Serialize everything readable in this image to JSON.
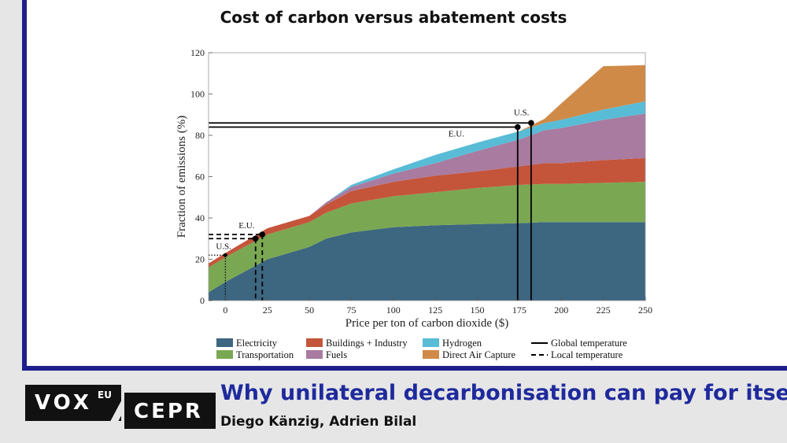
{
  "footer": {
    "logo_vox": "VOX",
    "logo_vox_sup": "EU",
    "logo_cepr": "CEPR",
    "headline": "Why unilateral decarbonisation can pay for itself",
    "authors": "Diego Känzig, Adrien Bilal"
  },
  "chart_data": {
    "type": "area",
    "title": "Cost of carbon versus abatement costs",
    "xlabel": "Price per ton of carbon dioxide ($)",
    "ylabel": "Fraction of emissions (%)",
    "xlim": [
      -10,
      250
    ],
    "ylim": [
      0,
      120
    ],
    "x_ticks": [
      0,
      25,
      50,
      75,
      100,
      125,
      150,
      175,
      200,
      225,
      250
    ],
    "y_ticks": [
      0,
      20,
      40,
      60,
      80,
      100,
      120
    ],
    "grid": false,
    "legend_position": "bottom",
    "stacked": true,
    "x": [
      -10,
      0,
      25,
      50,
      60,
      75,
      100,
      125,
      150,
      175,
      190,
      200,
      225,
      250
    ],
    "series": [
      {
        "name": "Electricity",
        "color": "#3d6680",
        "values": [
          4,
          9,
          20,
          26,
          30,
          33,
          35.5,
          36.5,
          37,
          37.5,
          38,
          38,
          38,
          38
        ]
      },
      {
        "name": "Transportation",
        "color": "#7aa852",
        "values": [
          12,
          12,
          12,
          12,
          12.5,
          14,
          15,
          16,
          17.5,
          18.5,
          18.5,
          18.5,
          19,
          19.5
        ]
      },
      {
        "name": "Buildings + Industry",
        "color": "#c4553a",
        "values": [
          2,
          2,
          3,
          3,
          4,
          6,
          7,
          8,
          8,
          9,
          10,
          10,
          11,
          11.5
        ]
      },
      {
        "name": "Fuels",
        "color": "#a97ba0",
        "values": [
          0,
          0,
          0,
          0,
          1,
          2,
          4,
          6,
          10,
          13,
          16,
          17,
          19.5,
          21.5
        ]
      },
      {
        "name": "Hydrogen",
        "color": "#58bcd6",
        "values": [
          0,
          0,
          0,
          0,
          0,
          1,
          2,
          4,
          4,
          4,
          3.5,
          4,
          5,
          6
        ]
      },
      {
        "name": "Direct Air Capture",
        "color": "#d08a48",
        "values": [
          0,
          0,
          0,
          0,
          0,
          0,
          0,
          0,
          0,
          0,
          2,
          8,
          21,
          17.5
        ]
      }
    ],
    "thresholds": [
      {
        "name": "Global temperature",
        "style": "solid",
        "region": "U.S.",
        "x": 182,
        "y": 86
      },
      {
        "name": "Global temperature",
        "style": "solid",
        "region": "E.U.",
        "x": 174,
        "y": 84
      },
      {
        "name": "Local temperature",
        "style": "dashed",
        "region": "E.U.",
        "x": 22,
        "y": 32
      },
      {
        "name": "Local temperature",
        "style": "dashed",
        "region": "E.U.",
        "x": 18,
        "y": 30
      },
      {
        "name": "Local temperature",
        "style": "dotted",
        "region": "U.S.",
        "x": 0,
        "y": 22
      }
    ],
    "annotations": [
      "U.S.",
      "E.U.",
      "E.U.",
      "U.S."
    ],
    "legend": [
      {
        "label": "Electricity",
        "kind": "swatch",
        "color": "#3d6680"
      },
      {
        "label": "Buildings + Industry",
        "kind": "swatch",
        "color": "#c4553a"
      },
      {
        "label": "Hydrogen",
        "kind": "swatch",
        "color": "#58bcd6"
      },
      {
        "label": "Global temperature",
        "kind": "solid-line"
      },
      {
        "label": "Transportation",
        "kind": "swatch",
        "color": "#7aa852"
      },
      {
        "label": "Fuels",
        "kind": "swatch",
        "color": "#a97ba0"
      },
      {
        "label": "Direct Air Capture",
        "kind": "swatch",
        "color": "#d08a48"
      },
      {
        "label": "Local temperature",
        "kind": "dashed-line"
      }
    ]
  }
}
